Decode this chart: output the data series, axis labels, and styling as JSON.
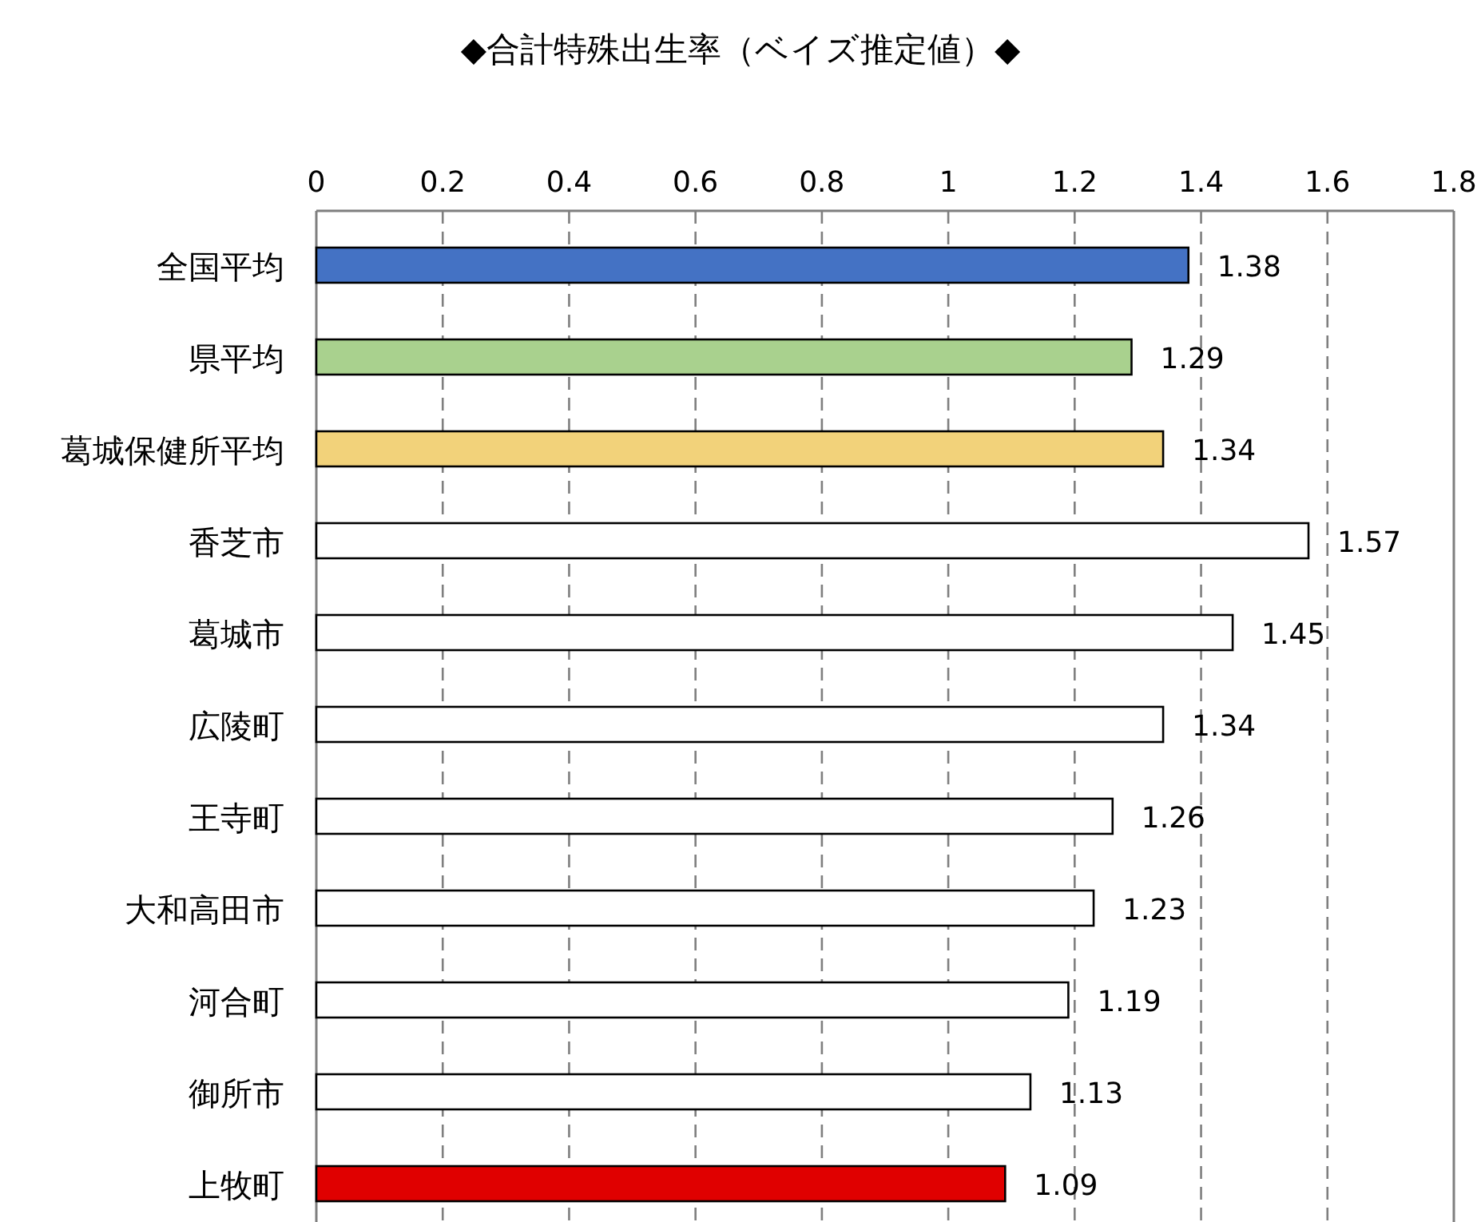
{
  "chart_data": {
    "type": "bar",
    "orientation": "horizontal",
    "title": "◆合計特殊出生率（ベイズ推定値）◆",
    "categories": [
      "全国平均",
      "県平均",
      "葛城保健所平均",
      "香芝市",
      "葛城市",
      "広陵町",
      "王寺町",
      "大和高田市",
      "河合町",
      "御所市",
      "上牧町"
    ],
    "values": [
      1.38,
      1.29,
      1.34,
      1.57,
      1.45,
      1.34,
      1.26,
      1.23,
      1.19,
      1.13,
      1.09
    ],
    "colors": [
      "#4472c4",
      "#a9d18e",
      "#f2d27a",
      "#ffffff",
      "#ffffff",
      "#ffffff",
      "#ffffff",
      "#ffffff",
      "#ffffff",
      "#ffffff",
      "#e00000"
    ],
    "xlim": [
      0,
      1.8
    ],
    "xticks": [
      0,
      0.2,
      0.4,
      0.6,
      0.8,
      1,
      1.2,
      1.4,
      1.6,
      1.8
    ],
    "grid": "x",
    "data_labels": true
  }
}
